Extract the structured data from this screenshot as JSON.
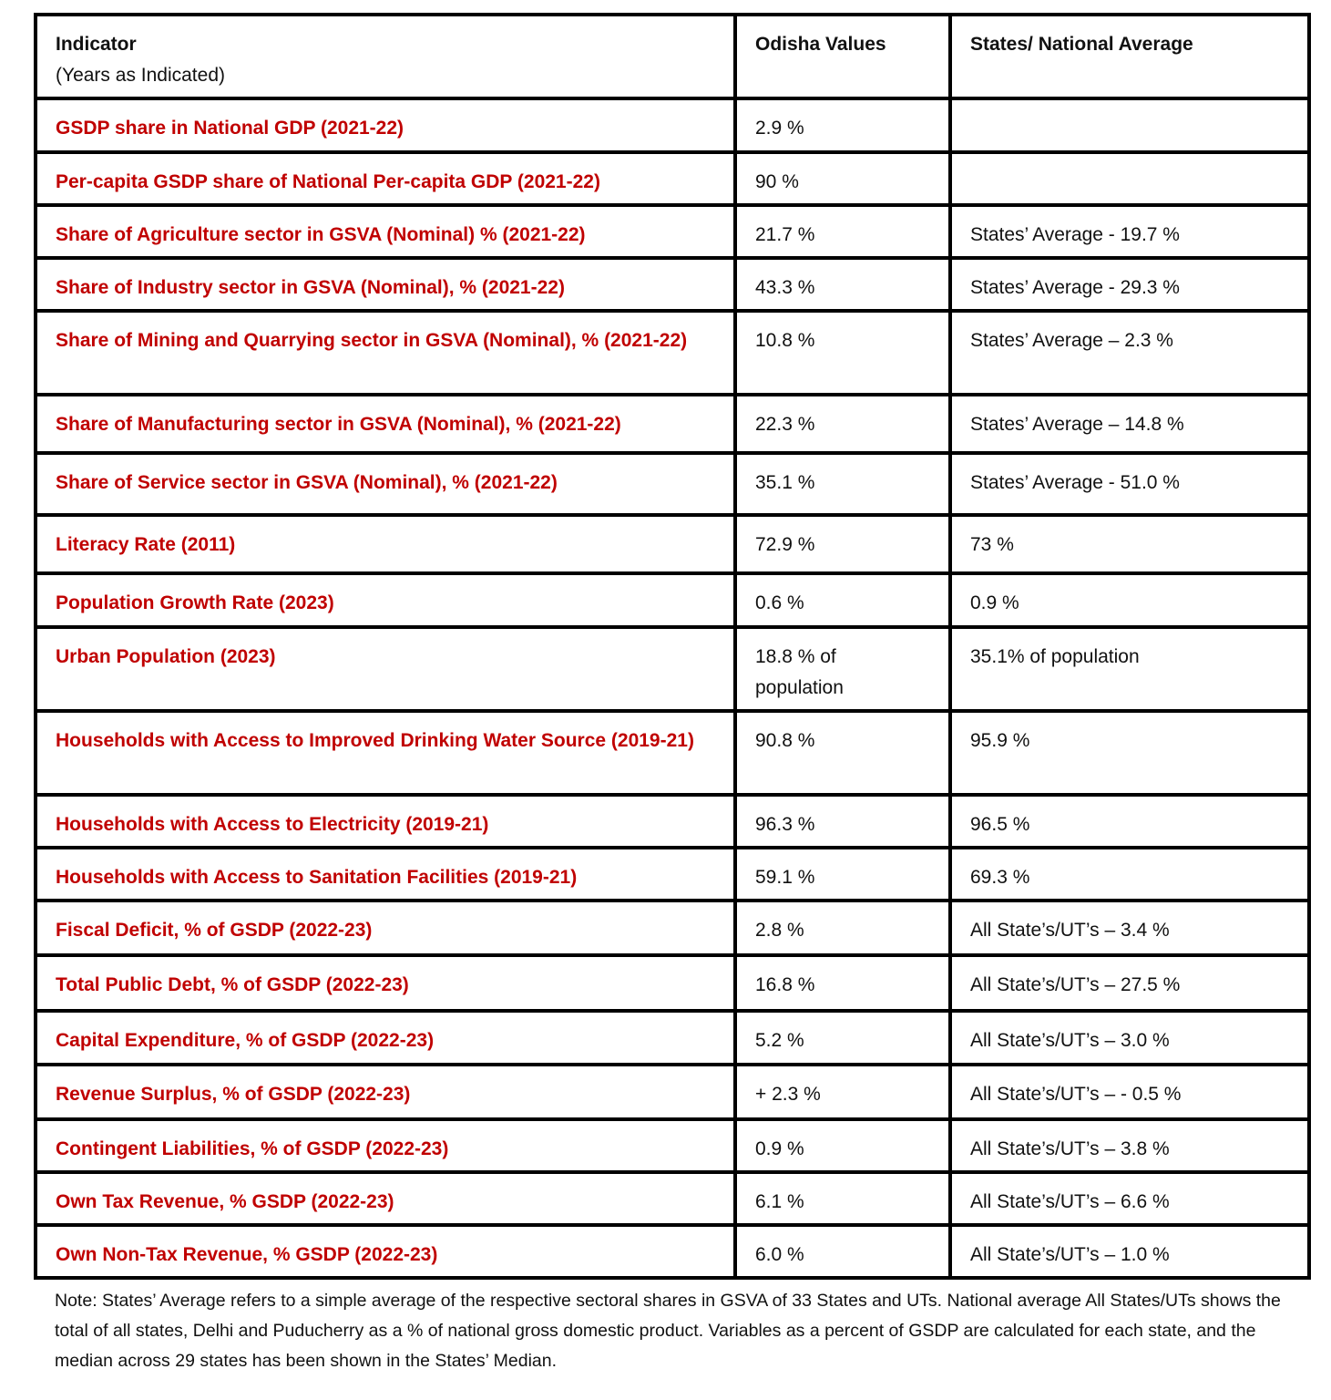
{
  "header": {
    "indicator": "Indicator",
    "indicator_sub": "(Years as Indicated)",
    "odisha": "Odisha Values",
    "national": "States/ National Average"
  },
  "rows": [
    {
      "indicator": "GSDP share in National GDP (2021-22)",
      "odisha": "2.9 %",
      "national": ""
    },
    {
      "indicator": "Per-capita GSDP share of National Per-capita GDP (2021-22)",
      "odisha": "90 %",
      "national": ""
    },
    {
      "indicator": "Share of Agriculture sector in GSVA (Nominal) % (2021-22)",
      "odisha": "21.7 %",
      "national": "States’ Average - 19.7 %"
    },
    {
      "indicator": "Share of Industry sector in GSVA (Nominal), % (2021-22)",
      "odisha": "43.3 %",
      "national": "States’ Average - 29.3 %"
    },
    {
      "indicator": "Share of Mining and Quarrying sector in GSVA (Nominal), % (2021-22)",
      "odisha": "10.8 %",
      "national": "States’ Average – 2.3 %"
    },
    {
      "indicator": "Share of Manufacturing sector in GSVA (Nominal), % (2021-22)",
      "odisha": "22.3 %",
      "national": "States’ Average – 14.8 %"
    },
    {
      "indicator": "Share of Service sector in GSVA (Nominal), % (2021-22)",
      "odisha": "35.1 %",
      "national": "States’ Average - 51.0 %"
    },
    {
      "indicator": "Literacy Rate (2011)",
      "odisha": "72.9 %",
      "national": "73 %"
    },
    {
      "indicator": "Population Growth Rate (2023)",
      "odisha": "0.6 %",
      "national": "0.9 %"
    },
    {
      "indicator": "Urban Population (2023)",
      "odisha": "18.8 % of population",
      "national": "35.1% of population"
    },
    {
      "indicator": "Households with Access to Improved Drinking Water Source (2019-21)",
      "odisha": "90.8 %",
      "national": "95.9 %"
    },
    {
      "indicator": "Households with Access to Electricity (2019-21)",
      "odisha": "96.3 %",
      "national": "96.5 %"
    },
    {
      "indicator": "Households with Access to Sanitation Facilities (2019-21)",
      "odisha": "59.1 %",
      "national": "69.3 %"
    },
    {
      "indicator": "Fiscal Deficit, % of GSDP (2022-23)",
      "odisha": "2.8 %",
      "national": "All State’s/UT’s – 3.4 %"
    },
    {
      "indicator": "Total Public Debt, % of GSDP (2022-23)",
      "odisha": "16.8 %",
      "national": "All State’s/UT’s – 27.5 %"
    },
    {
      "indicator": "Capital Expenditure, % of GSDP (2022-23)",
      "odisha": "5.2 %",
      "national": "All State’s/UT’s – 3.0 %"
    },
    {
      "indicator": "Revenue Surplus, % of GSDP (2022-23)",
      "odisha": "+ 2.3 %",
      "national": "All State’s/UT’s – - 0.5 %"
    },
    {
      "indicator": "Contingent Liabilities, % of GSDP (2022-23)",
      "odisha": "0.9 %",
      "national": "All State’s/UT’s –  3.8 %"
    },
    {
      "indicator": "Own Tax Revenue, % GSDP (2022-23)",
      "odisha": "6.1 %",
      "national": "All State’s/UT’s –   6.6 %"
    },
    {
      "indicator": "Own Non-Tax Revenue, % GSDP (2022-23)",
      "odisha": "6.0 %",
      "national": "All State’s/UT’s –  1.0 %"
    }
  ],
  "note": "Note: States’ Average refers to a simple average of the respective sectoral shares in GSVA of 33 States and UTs. National average All States/UTs shows the total of all states, Delhi and Puducherry as a % of national gross domestic product. Variables as a percent of GSDP are calculated for each state, and the median across 29 states has been shown in the States’ Median.",
  "colors": {
    "indicator_text": "#c00000",
    "border": "#000000"
  }
}
